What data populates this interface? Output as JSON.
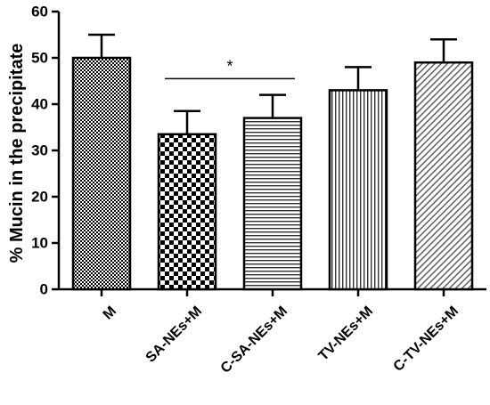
{
  "chart_data": {
    "type": "bar",
    "ylabel": "% Mucin in the precipitate",
    "ylim": [
      0,
      60
    ],
    "yticks": [
      0,
      10,
      20,
      30,
      40,
      50,
      60
    ],
    "categories": [
      "M",
      "SA-NEs+M",
      "C-SA-NEs+M",
      "TV-NEs+M",
      "C-TV-NEs+M"
    ],
    "values": [
      50,
      33.5,
      37,
      43,
      49
    ],
    "error": [
      5,
      5,
      5,
      5,
      5
    ],
    "patterns": [
      "fine-checker",
      "checkerboard",
      "horizontal-lines",
      "vertical-lines",
      "diagonal-lines"
    ],
    "significance": [
      {
        "from": 1,
        "to": 2,
        "label": "*"
      }
    ],
    "colors": {
      "fill": "#ffffff",
      "stroke": "#000000"
    }
  }
}
